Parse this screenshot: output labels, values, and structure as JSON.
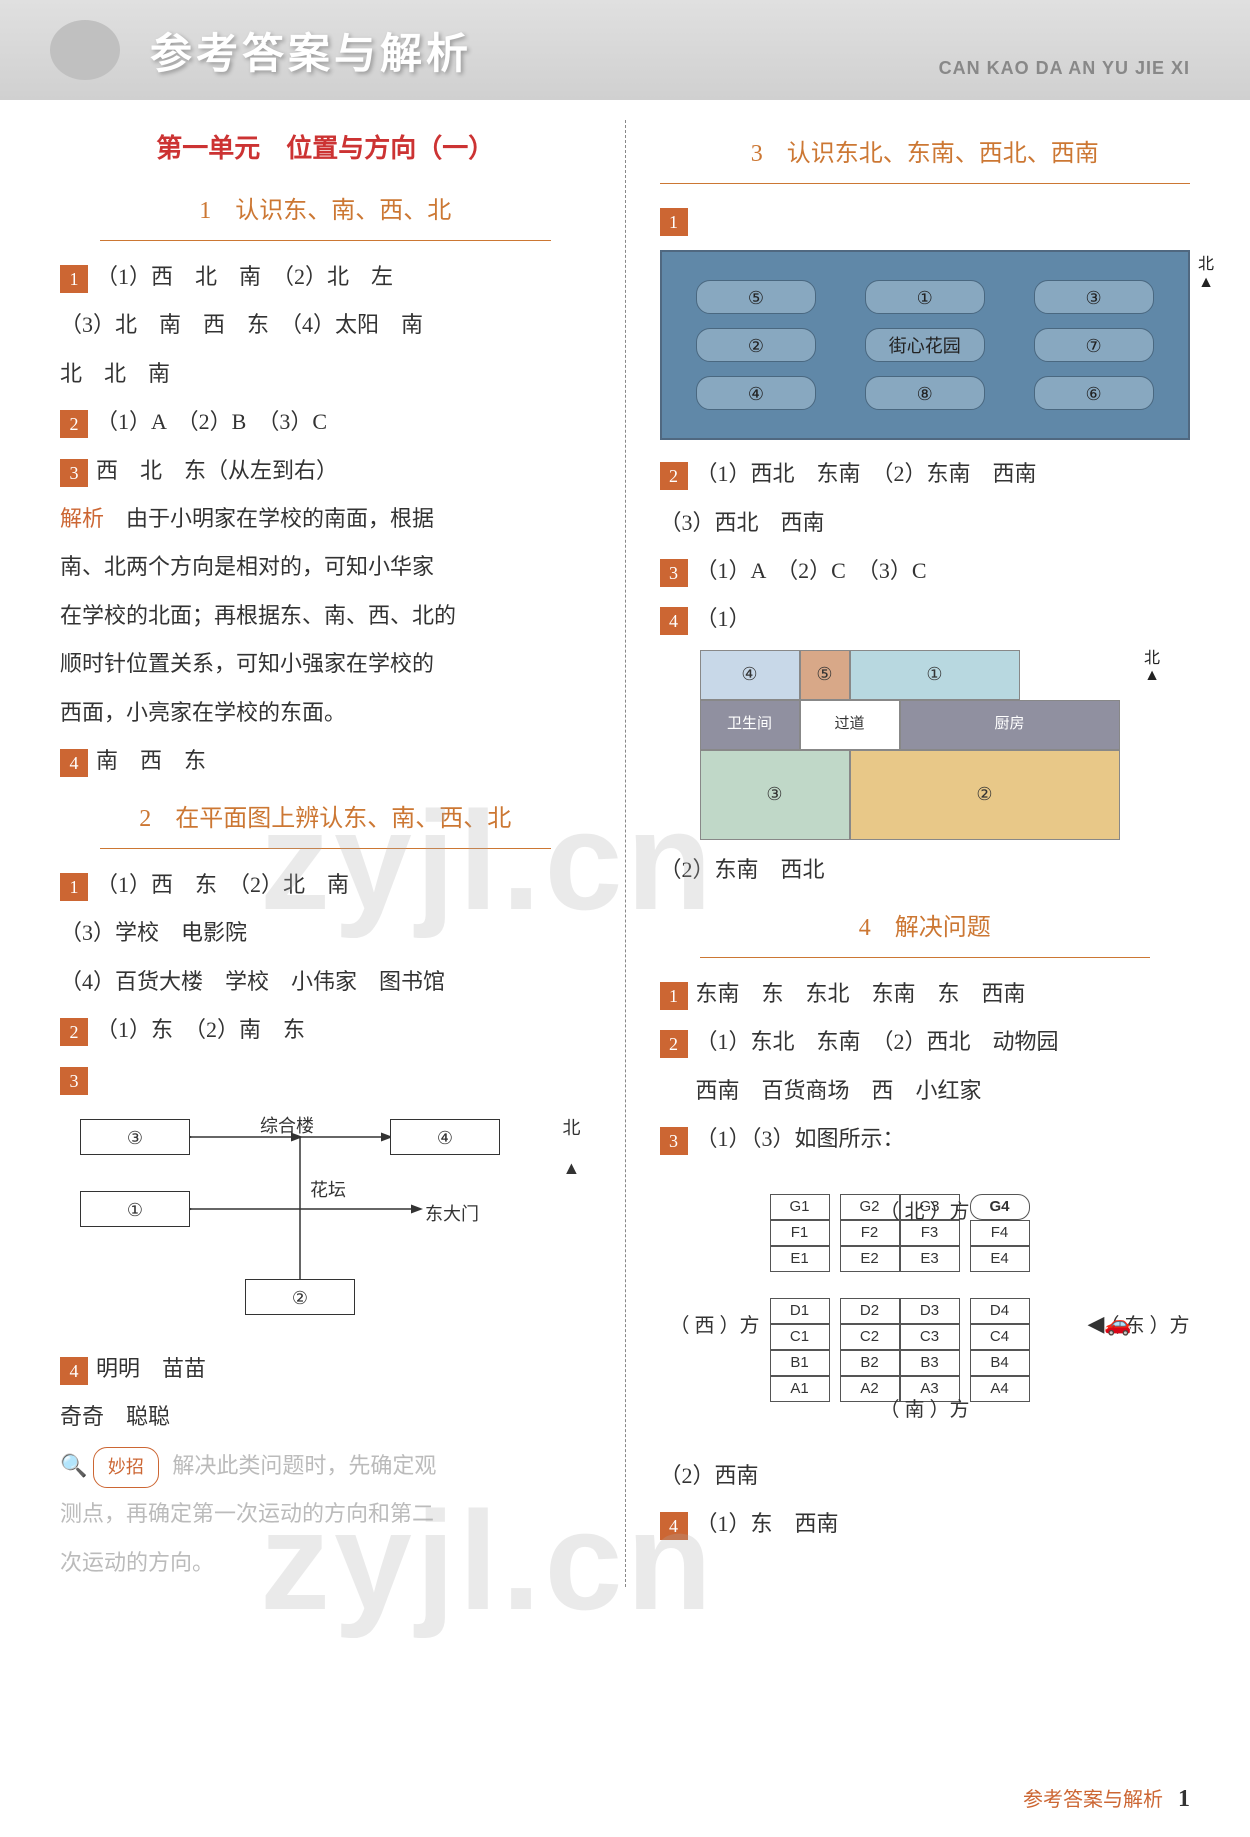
{
  "banner": {
    "title": "参考答案与解析",
    "pinyin": "CAN KAO DA AN YU JIE XI"
  },
  "left": {
    "unit_title": "第一单元　位置与方向（一）",
    "lesson1_title": "1　认识东、南、西、北",
    "l1_q1a": "（1）西　北　南　（2）北　左",
    "l1_q1b": "（3）北　南　西　东　（4）太阳　南",
    "l1_q1c": "北　北　南",
    "l1_q2": "（1）A　（2）B　（3）C",
    "l1_q3": "西　北　东（从左到右）",
    "jiexi_label": "解析",
    "l1_jiexi1": "由于小明家在学校的南面，根据",
    "l1_jiexi2": "南、北两个方向是相对的，可知小华家",
    "l1_jiexi3": "在学校的北面；再根据东、南、西、北的",
    "l1_jiexi4": "顺时针位置关系，可知小强家在学校的",
    "l1_jiexi5": "西面，小亮家在学校的东面。",
    "l1_q4": "南　西　东",
    "lesson2_title": "2　在平面图上辨认东、南、西、北",
    "l2_q1a": "（1）西　东　（2）北　南",
    "l2_q1b": "（3）学校　电影院",
    "l2_q1c": "（4）百货大楼　学校　小伟家　图书馆",
    "l2_q2": "（1）东　（2）南　东",
    "campus": {
      "box3": "③",
      "box4": "④",
      "box1": "①",
      "box2": "②",
      "zonghe": "综合楼",
      "huatan": "花坛",
      "gate": "东大门",
      "north": "北"
    },
    "l2_q4a": "明明　苗苗",
    "l2_q4b": "奇奇　聪聪",
    "tip_label": "妙招",
    "tip1": "解决此类问题时，先确定观",
    "tip2": "测点，再确定第一次运动的方向和第二",
    "tip3": "次运动的方向。"
  },
  "right": {
    "lesson3_title": "3　认识东北、东南、西北、西南",
    "map": {
      "cells": [
        [
          "⑤",
          "①",
          "③"
        ],
        [
          "②",
          "街心花园",
          "⑦"
        ],
        [
          "④",
          "⑧",
          "⑥"
        ]
      ],
      "north": "北"
    },
    "l3_q2a": "（1）西北　东南　（2）东南　西南",
    "l3_q2b": "（3）西北　西南",
    "l3_q3": "（1）A　（2）C　（3）C",
    "l3_q4_label": "（1）",
    "plan": {
      "north": "北",
      "r4": "④",
      "r5": "⑤",
      "r1": "①",
      "wsj": "卫生间",
      "guodao": "过道",
      "chufang": "厨房",
      "r3": "③",
      "r2": "②"
    },
    "l3_q4_2": "（2）东南　西北",
    "lesson4_title": "4　解决问题",
    "l4_q1": "东南　东　东北　东南　东　西南",
    "l4_q2a": "（1）东北　东南　（2）西北　动物园",
    "l4_q2b": "西南　百货商场　西　小红家",
    "l4_q3_head": "（1）（3）如图所示：",
    "parking": {
      "north": "（ 北 ）方",
      "south": "（ 南 ）方",
      "west": "（ 西 ）方",
      "east": "（ 东 ）方",
      "rows_top": [
        [
          "G1",
          "G2",
          "G3",
          "G4"
        ],
        [
          "F1",
          "F2",
          "F3",
          "F4"
        ],
        [
          "E1",
          "E2",
          "E3",
          "E4"
        ]
      ],
      "rows_bot": [
        [
          "D1",
          "D2",
          "D3",
          "D4"
        ],
        [
          "C1",
          "C2",
          "C3",
          "C4"
        ],
        [
          "B1",
          "B2",
          "B3",
          "B4"
        ],
        [
          "A1",
          "A2",
          "A3",
          "A4"
        ]
      ],
      "circled": "G4"
    },
    "l4_q3_2": "（2）西南",
    "l4_q4": "（1）东　西南"
  },
  "watermarks": {
    "w1": "zyjl.cn",
    "w2": "zyjl.cn"
  },
  "footer": {
    "label": "参考答案与解析",
    "page": "1"
  }
}
